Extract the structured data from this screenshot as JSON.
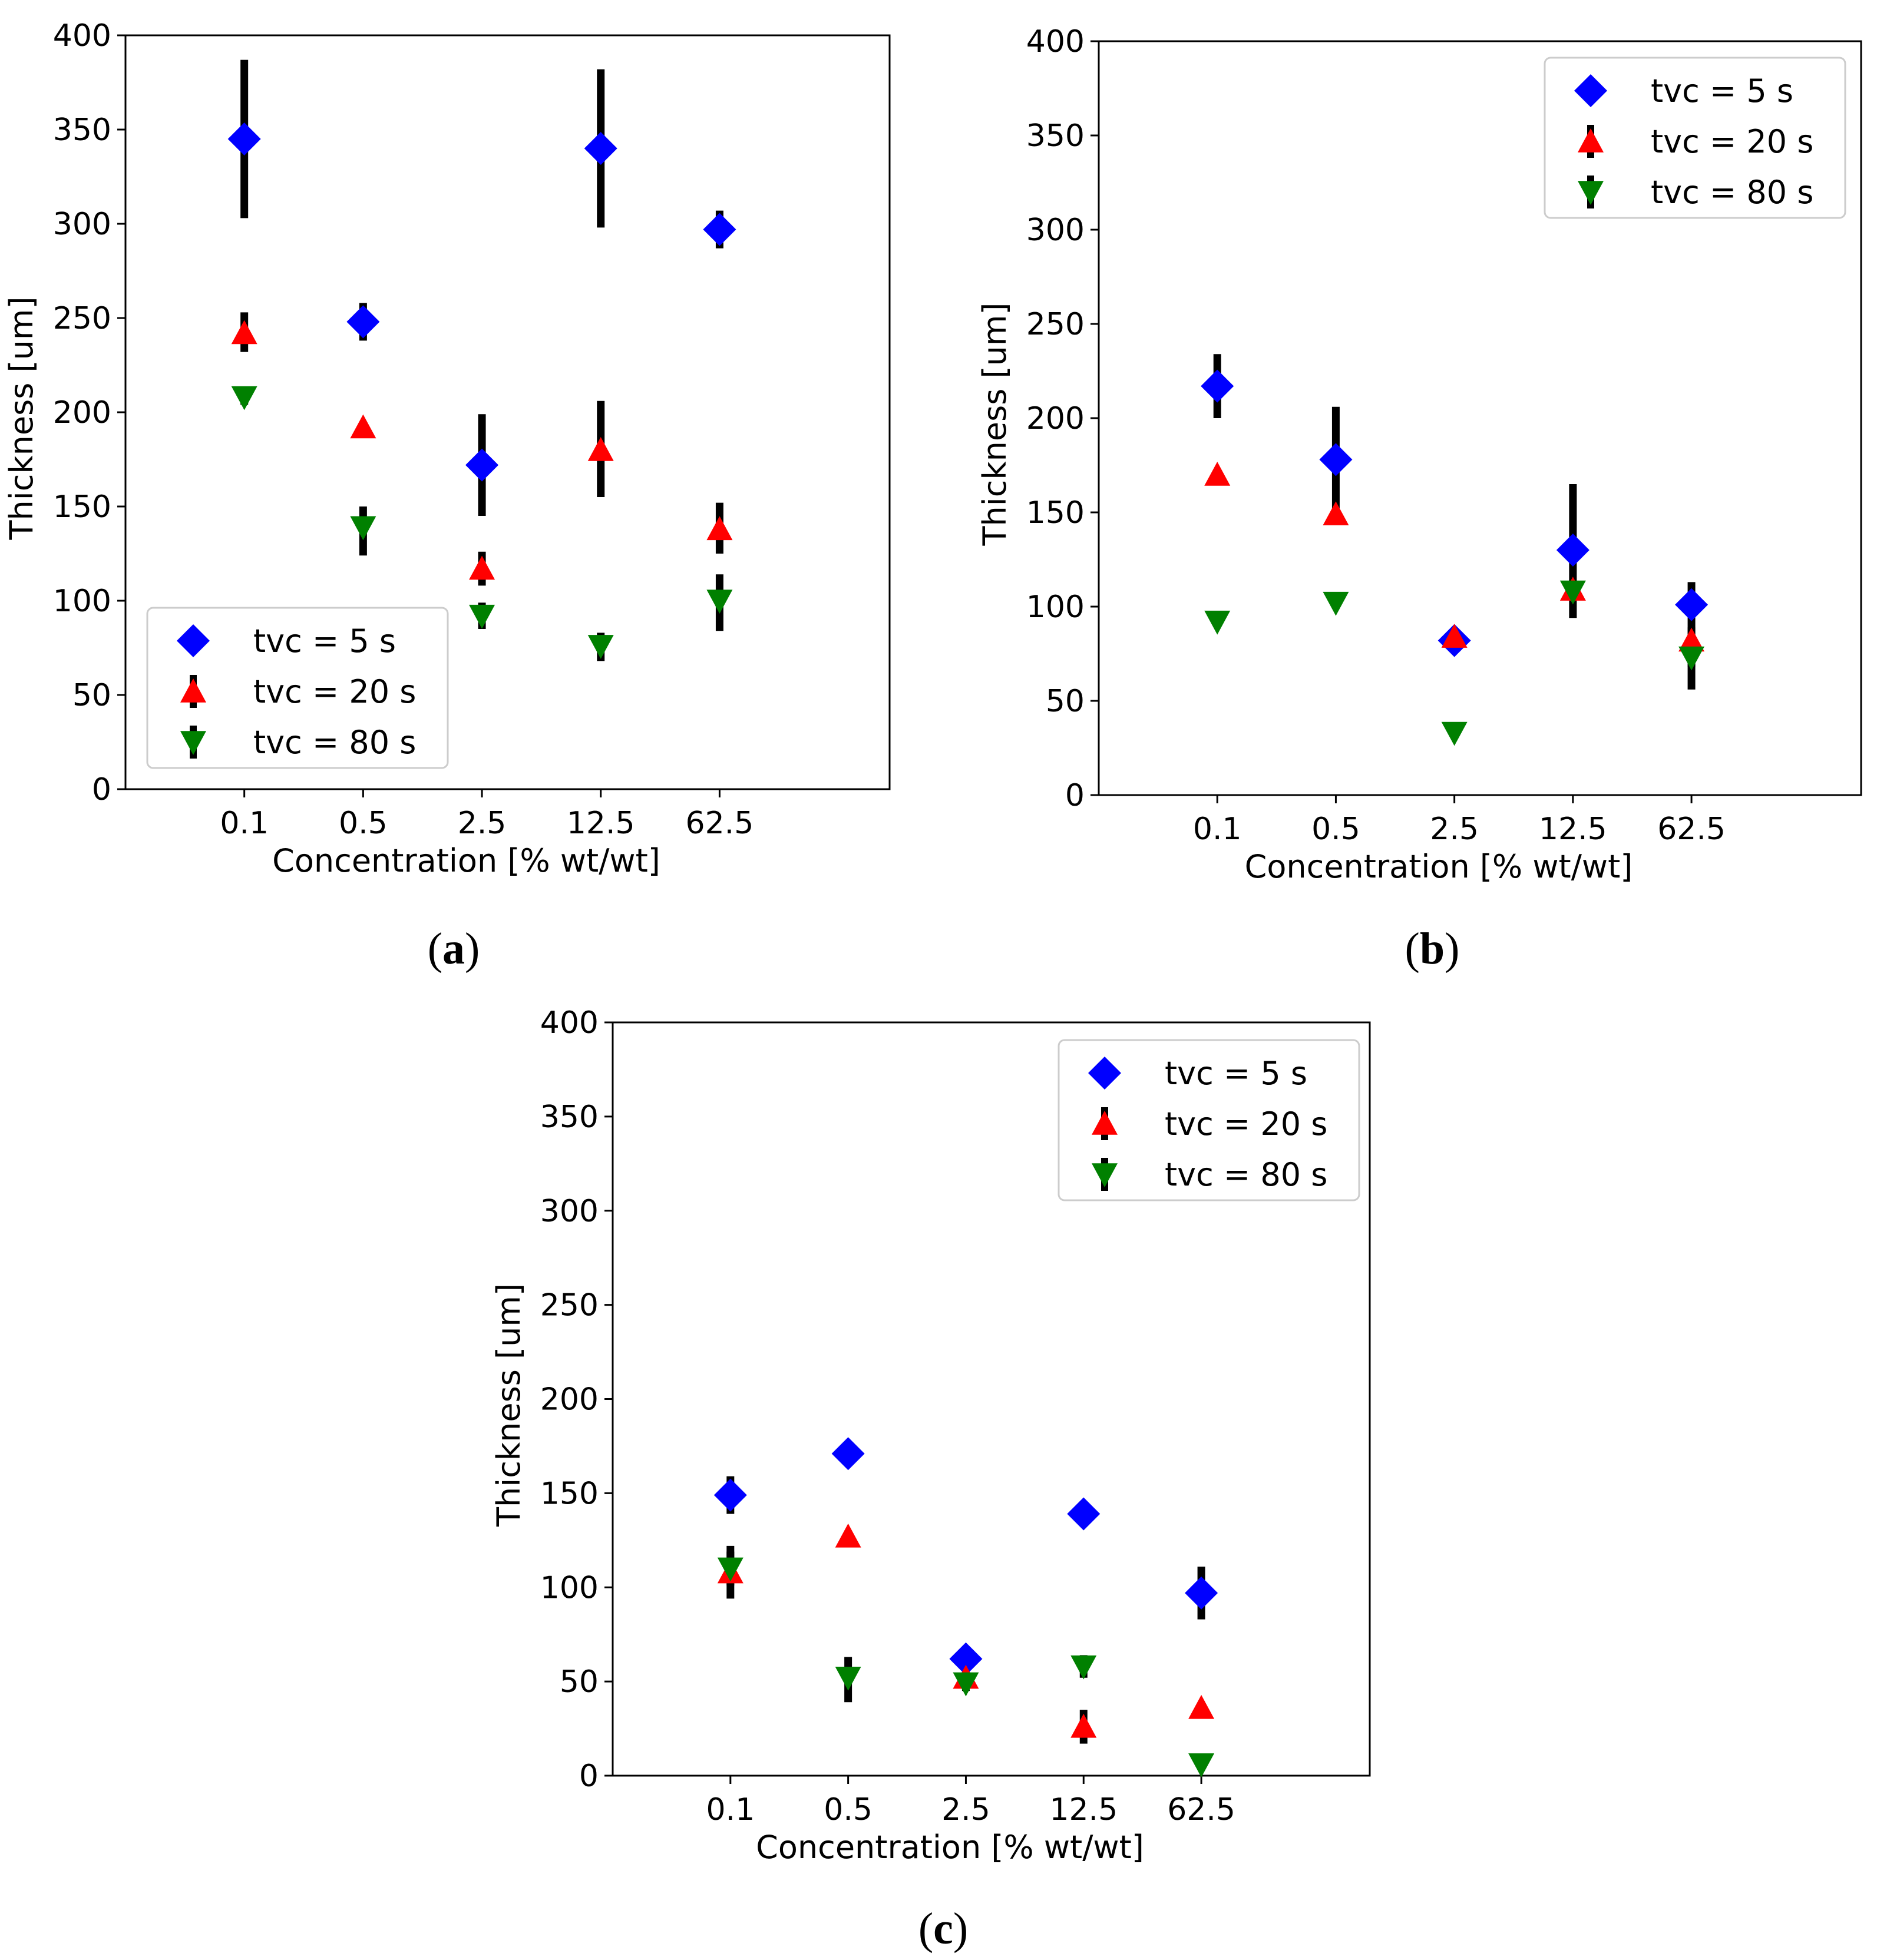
{
  "figure": {
    "panel_labels": [
      {
        "open": "(",
        "letter": "a",
        "close": ")"
      },
      {
        "open": "(",
        "letter": "b",
        "close": ")"
      },
      {
        "open": "(",
        "letter": "c",
        "close": ")"
      }
    ]
  },
  "colors": {
    "tvc5": "#0000ff",
    "tvc20": "#ff0000",
    "tvc80": "#008000",
    "errorbar": "#000000",
    "legend_border": "#cccccc"
  },
  "chart_data": [
    {
      "type": "scatter",
      "panel": "a",
      "categories": [
        "0.1",
        "0.5",
        "2.5",
        "12.5",
        "62.5"
      ],
      "xlabel": "Concentration [% wt/wt]",
      "ylabel": "Thickness [um]",
      "ylim": [
        0,
        400
      ],
      "yticks": [
        0,
        50,
        100,
        150,
        200,
        250,
        300,
        350,
        400
      ],
      "grid": false,
      "legend_position": "lower-left",
      "series": [
        {
          "name": "tvc = 5 s",
          "marker": "diamond",
          "color_key": "tvc5",
          "values": [
            345,
            248,
            172,
            340,
            297
          ],
          "err_low": [
            303,
            238,
            145,
            298,
            287
          ],
          "err_high": [
            387,
            258,
            199,
            382,
            307
          ]
        },
        {
          "name": "tvc = 20 s",
          "marker": "triangle-up",
          "color_key": "tvc20",
          "values": [
            242,
            192,
            117,
            180,
            138
          ],
          "err_low": [
            232,
            192,
            108,
            155,
            125
          ],
          "err_high": [
            253,
            192,
            126,
            206,
            152
          ]
        },
        {
          "name": "tvc = 80 s",
          "marker": "triangle-down",
          "color_key": "tvc80",
          "values": [
            208,
            139,
            92,
            76,
            100
          ],
          "err_low": [
            204,
            124,
            85,
            68,
            84
          ],
          "err_high": [
            212,
            150,
            99,
            83,
            114
          ]
        }
      ]
    },
    {
      "type": "scatter",
      "panel": "b",
      "categories": [
        "0.1",
        "0.5",
        "2.5",
        "12.5",
        "62.5"
      ],
      "xlabel": "Concentration [% wt/wt]",
      "ylabel": "Thickness [um]",
      "ylim": [
        0,
        400
      ],
      "yticks": [
        0,
        50,
        100,
        150,
        200,
        250,
        300,
        350,
        400
      ],
      "grid": false,
      "legend_position": "upper-right",
      "series": [
        {
          "name": "tvc = 5 s",
          "marker": "diamond",
          "color_key": "tvc5",
          "values": [
            217,
            178,
            82,
            130,
            101
          ],
          "err_low": [
            200,
            150,
            78,
            94,
            56
          ],
          "err_high": [
            234,
            206,
            86,
            165,
            113
          ]
        },
        {
          "name": "tvc = 20 s",
          "marker": "triangle-up",
          "color_key": "tvc20",
          "values": [
            170,
            149,
            84,
            109,
            82
          ],
          "err_low": [
            170,
            149,
            84,
            104,
            75
          ],
          "err_high": [
            170,
            149,
            84,
            114,
            89
          ]
        },
        {
          "name": "tvc = 80 s",
          "marker": "triangle-down",
          "color_key": "tvc80",
          "values": [
            92,
            102,
            33,
            108,
            73
          ],
          "err_low": [
            92,
            102,
            33,
            104,
            68
          ],
          "err_high": [
            92,
            102,
            33,
            112,
            78
          ]
        }
      ]
    },
    {
      "type": "scatter",
      "panel": "c",
      "categories": [
        "0.1",
        "0.5",
        "2.5",
        "12.5",
        "62.5"
      ],
      "xlabel": "Concentration [% wt/wt]",
      "ylabel": "Thickness [um]",
      "ylim": [
        0,
        400
      ],
      "yticks": [
        0,
        50,
        100,
        150,
        200,
        250,
        300,
        350,
        400
      ],
      "grid": false,
      "legend_position": "upper-right",
      "series": [
        {
          "name": "tvc = 5 s",
          "marker": "diamond",
          "color_key": "tvc5",
          "values": [
            149,
            171,
            62,
            139,
            97
          ],
          "err_low": [
            139,
            171,
            58,
            139,
            83
          ],
          "err_high": [
            159,
            171,
            66,
            139,
            111
          ]
        },
        {
          "name": "tvc = 20 s",
          "marker": "triangle-up",
          "color_key": "tvc20",
          "values": [
            108,
            127,
            52,
            26,
            36
          ],
          "err_low": [
            94,
            127,
            46,
            17,
            33
          ],
          "err_high": [
            122,
            127,
            58,
            35,
            39
          ]
        },
        {
          "name": "tvc = 80 s",
          "marker": "triangle-down",
          "color_key": "tvc80",
          "values": [
            110,
            52,
            49,
            58,
            6
          ],
          "err_low": [
            101,
            39,
            45,
            52,
            3
          ],
          "err_high": [
            119,
            63,
            53,
            64,
            9
          ]
        }
      ]
    }
  ]
}
